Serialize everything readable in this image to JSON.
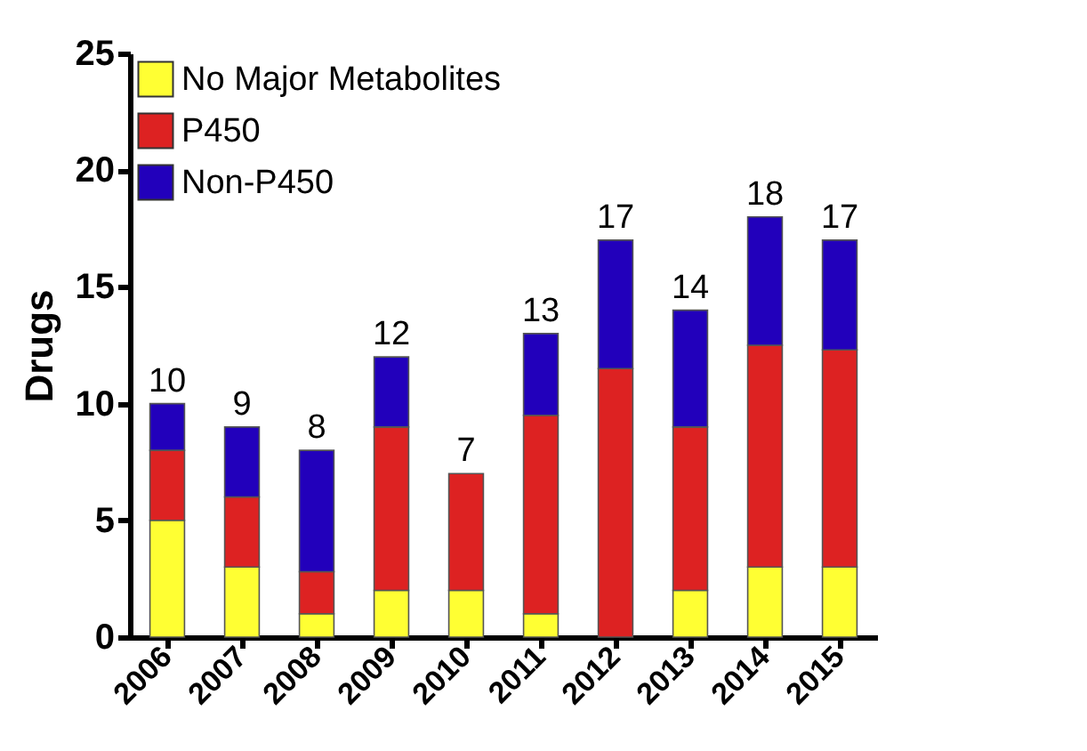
{
  "chart_data": {
    "type": "bar",
    "stacked": true,
    "ylabel": "Drugs",
    "categories": [
      "2006",
      "2007",
      "2008",
      "2009",
      "2010",
      "2011",
      "2012",
      "2013",
      "2014",
      "2015"
    ],
    "series": [
      {
        "name": "No Major Metabolites",
        "color": "#ffff33",
        "values": [
          5,
          3,
          1,
          2,
          2,
          1,
          null,
          2,
          3,
          3
        ]
      },
      {
        "name": "P450",
        "color": "#dd2222",
        "values": [
          3,
          3,
          1.8,
          7,
          5,
          8.5,
          11.5,
          7,
          9.5,
          9.3
        ]
      },
      {
        "name": "Non-P450",
        "color": "#2200bb",
        "values": [
          2,
          3,
          5.2,
          3,
          null,
          3.5,
          5.5,
          5,
          5.5,
          4.7
        ]
      }
    ],
    "totals": [
      "10",
      "9",
      "8",
      "12",
      "7",
      "13",
      "17",
      "14",
      "18",
      "17"
    ],
    "ylim": [
      0,
      25
    ],
    "yticks": [
      0,
      5,
      10,
      15,
      20,
      25
    ],
    "grid": false,
    "legend": "top left"
  }
}
